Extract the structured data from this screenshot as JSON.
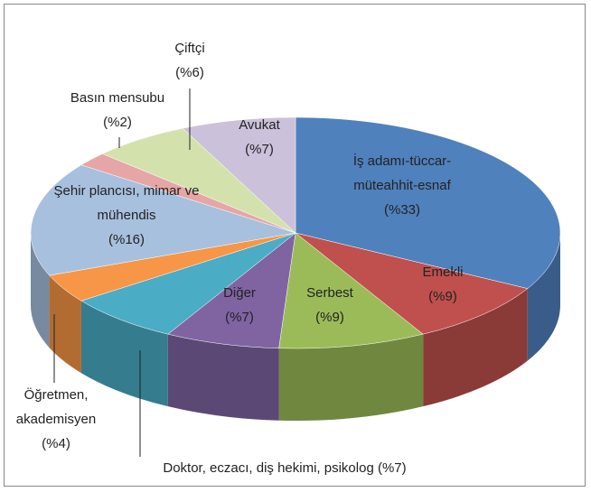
{
  "chart_data": {
    "type": "pie3d",
    "categories": [
      "İş adamı-tüccar-müteahhit-esnaf",
      "Emekli",
      "Serbest",
      "Diğer",
      "Doktor, eczacı, diş hekimi, psikolog",
      "Öğretmen, akademisyen",
      "Şehir plancısı, mimar ve mühendis",
      "Basın mensubu",
      "Çiftçi",
      "Avukat"
    ],
    "values": [
      33,
      9,
      9,
      7,
      7,
      4,
      16,
      2,
      6,
      7
    ],
    "value_labels": [
      "(%33)",
      "(%9)",
      "(%9)",
      "(%7)",
      "(%7)",
      "(%4)",
      "(%16)",
      "(%2)",
      "(%6)",
      "(%7)"
    ],
    "colors": [
      "#4f81bd",
      "#c0504d",
      "#9bbb59",
      "#8064a2",
      "#4bacc6",
      "#f79646",
      "#a7c0de",
      "#e6a6a5",
      "#d3e2ad",
      "#ccc1da"
    ]
  }
}
